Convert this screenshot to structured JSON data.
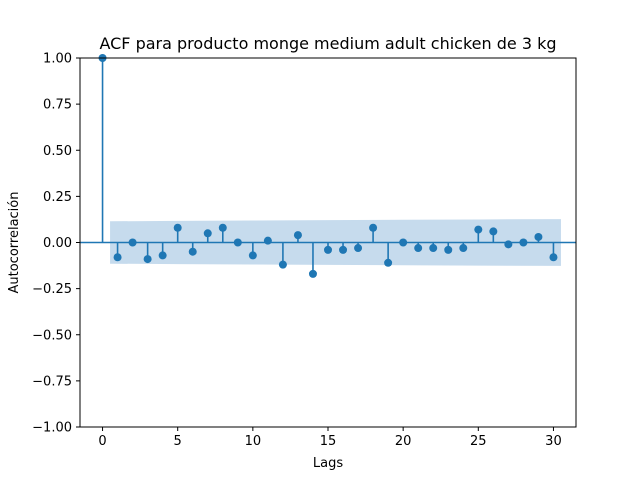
{
  "chart_data": {
    "type": "stem",
    "title": "ACF para producto monge medium adult chicken de 3 kg",
    "xlabel": "Lags",
    "ylabel": "Autocorrelación",
    "xlim": [
      -1.5,
      31.5
    ],
    "ylim": [
      -1.0,
      1.0
    ],
    "xticks": [
      0,
      5,
      10,
      15,
      20,
      25,
      30
    ],
    "xtick_labels": [
      "0",
      "5",
      "10",
      "15",
      "20",
      "25",
      "30"
    ],
    "yticks": [
      -1.0,
      -0.75,
      -0.5,
      -0.25,
      0.0,
      0.25,
      0.5,
      0.75,
      1.0
    ],
    "ytick_labels": [
      "−1.00",
      "−0.75",
      "−0.50",
      "−0.25",
      "0.00",
      "0.25",
      "0.50",
      "0.75",
      "1.00"
    ],
    "lags": [
      0,
      1,
      2,
      3,
      4,
      5,
      6,
      7,
      8,
      9,
      10,
      11,
      12,
      13,
      14,
      15,
      16,
      17,
      18,
      19,
      20,
      21,
      22,
      23,
      24,
      25,
      26,
      27,
      28,
      29,
      30
    ],
    "values": [
      1.0,
      -0.08,
      0.0,
      -0.09,
      -0.07,
      0.08,
      -0.05,
      0.05,
      0.08,
      0.0,
      -0.07,
      0.01,
      -0.12,
      0.04,
      -0.17,
      -0.04,
      -0.04,
      -0.03,
      0.08,
      -0.11,
      0.0,
      -0.03,
      -0.03,
      -0.04,
      -0.03,
      0.07,
      0.06,
      -0.01,
      0.0,
      0.03,
      -0.08
    ],
    "confidence_band": {
      "lags": [
        0.5,
        5,
        10,
        15,
        20,
        25,
        30.5
      ],
      "upper": [
        0.115,
        0.117,
        0.119,
        0.121,
        0.123,
        0.125,
        0.127
      ],
      "lower": [
        -0.115,
        -0.117,
        -0.119,
        -0.121,
        -0.123,
        -0.125,
        -0.127
      ]
    },
    "colors": {
      "stem": "#1f77b4",
      "band": "#c6dbed",
      "axis": "#000000"
    },
    "grid": false
  }
}
